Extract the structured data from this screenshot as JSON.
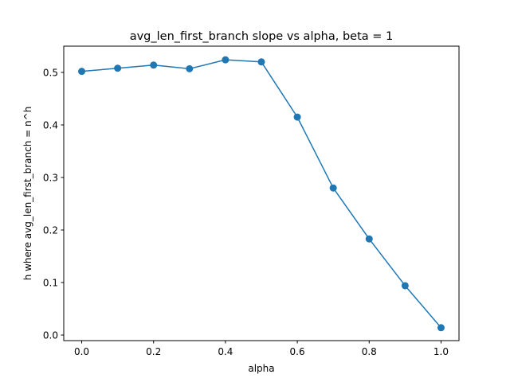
{
  "chart_data": {
    "type": "line",
    "title": "avg_len_first_branch slope vs alpha, beta = 1",
    "xlabel": "alpha",
    "ylabel": "h where avg_len_first_branch = n^h",
    "xlim": [
      -0.05,
      1.05
    ],
    "ylim": [
      -0.0106,
      0.55
    ],
    "xticks": [
      0.0,
      0.2,
      0.4,
      0.6,
      0.8,
      1.0
    ],
    "xtick_labels": [
      "0.0",
      "0.2",
      "0.4",
      "0.6",
      "0.8",
      "1.0"
    ],
    "yticks": [
      0.0,
      0.1,
      0.2,
      0.3,
      0.4,
      0.5
    ],
    "ytick_labels": [
      "0.0",
      "0.1",
      "0.2",
      "0.3",
      "0.4",
      "0.5"
    ],
    "grid": false,
    "series": [
      {
        "color": "#1f77b4",
        "marker": "circle",
        "x": [
          0.0,
          0.1,
          0.2,
          0.3,
          0.4,
          0.5,
          0.6,
          0.7,
          0.8,
          0.9,
          1.0
        ],
        "y": [
          0.502,
          0.508,
          0.514,
          0.507,
          0.524,
          0.52,
          0.415,
          0.28,
          0.183,
          0.094,
          0.014
        ]
      }
    ]
  }
}
